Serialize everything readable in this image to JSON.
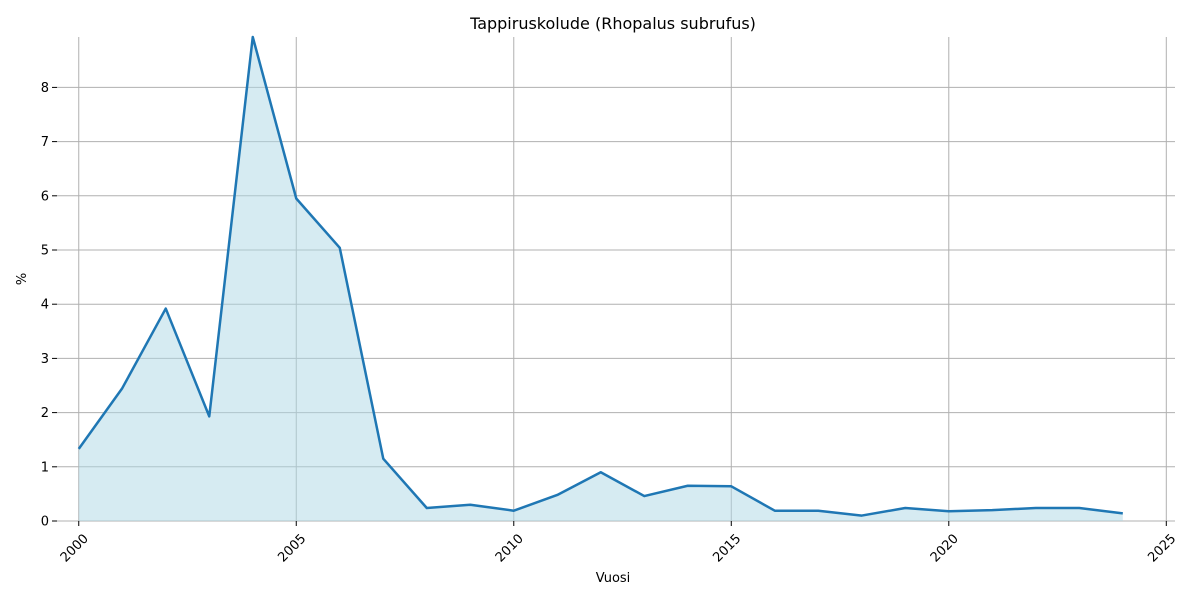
{
  "chart_data": {
    "type": "area",
    "title": "Tappiruskolude (Rhopalus subrufus)",
    "xlabel": "Vuosi",
    "ylabel": "%",
    "x": [
      2000,
      2001,
      2002,
      2003,
      2004,
      2005,
      2006,
      2007,
      2008,
      2009,
      2010,
      2011,
      2012,
      2013,
      2014,
      2015,
      2016,
      2017,
      2018,
      2019,
      2020,
      2021,
      2022,
      2023,
      2024
    ],
    "series": [
      {
        "values": [
          1.33,
          2.45,
          3.92,
          1.93,
          8.93,
          5.95,
          5.04,
          1.15,
          0.24,
          0.3,
          0.19,
          0.48,
          0.9,
          0.46,
          0.65,
          0.64,
          0.19,
          0.19,
          0.1,
          0.24,
          0.18,
          0.2,
          0.24,
          0.24,
          0.14
        ],
        "line_color": "#1f77b4",
        "fill_color": "#add8e6"
      }
    ],
    "xlim": [
      1999.5,
      2025.2
    ],
    "ylim": [
      0,
      8.93
    ],
    "xticks": [
      "2000",
      "2005",
      "2010",
      "2015",
      "2020",
      "2025"
    ],
    "yticks": [
      "0",
      "1",
      "2",
      "3",
      "4",
      "5",
      "6",
      "7",
      "8"
    ],
    "grid": true,
    "grid_color": "#b0b0b0"
  }
}
